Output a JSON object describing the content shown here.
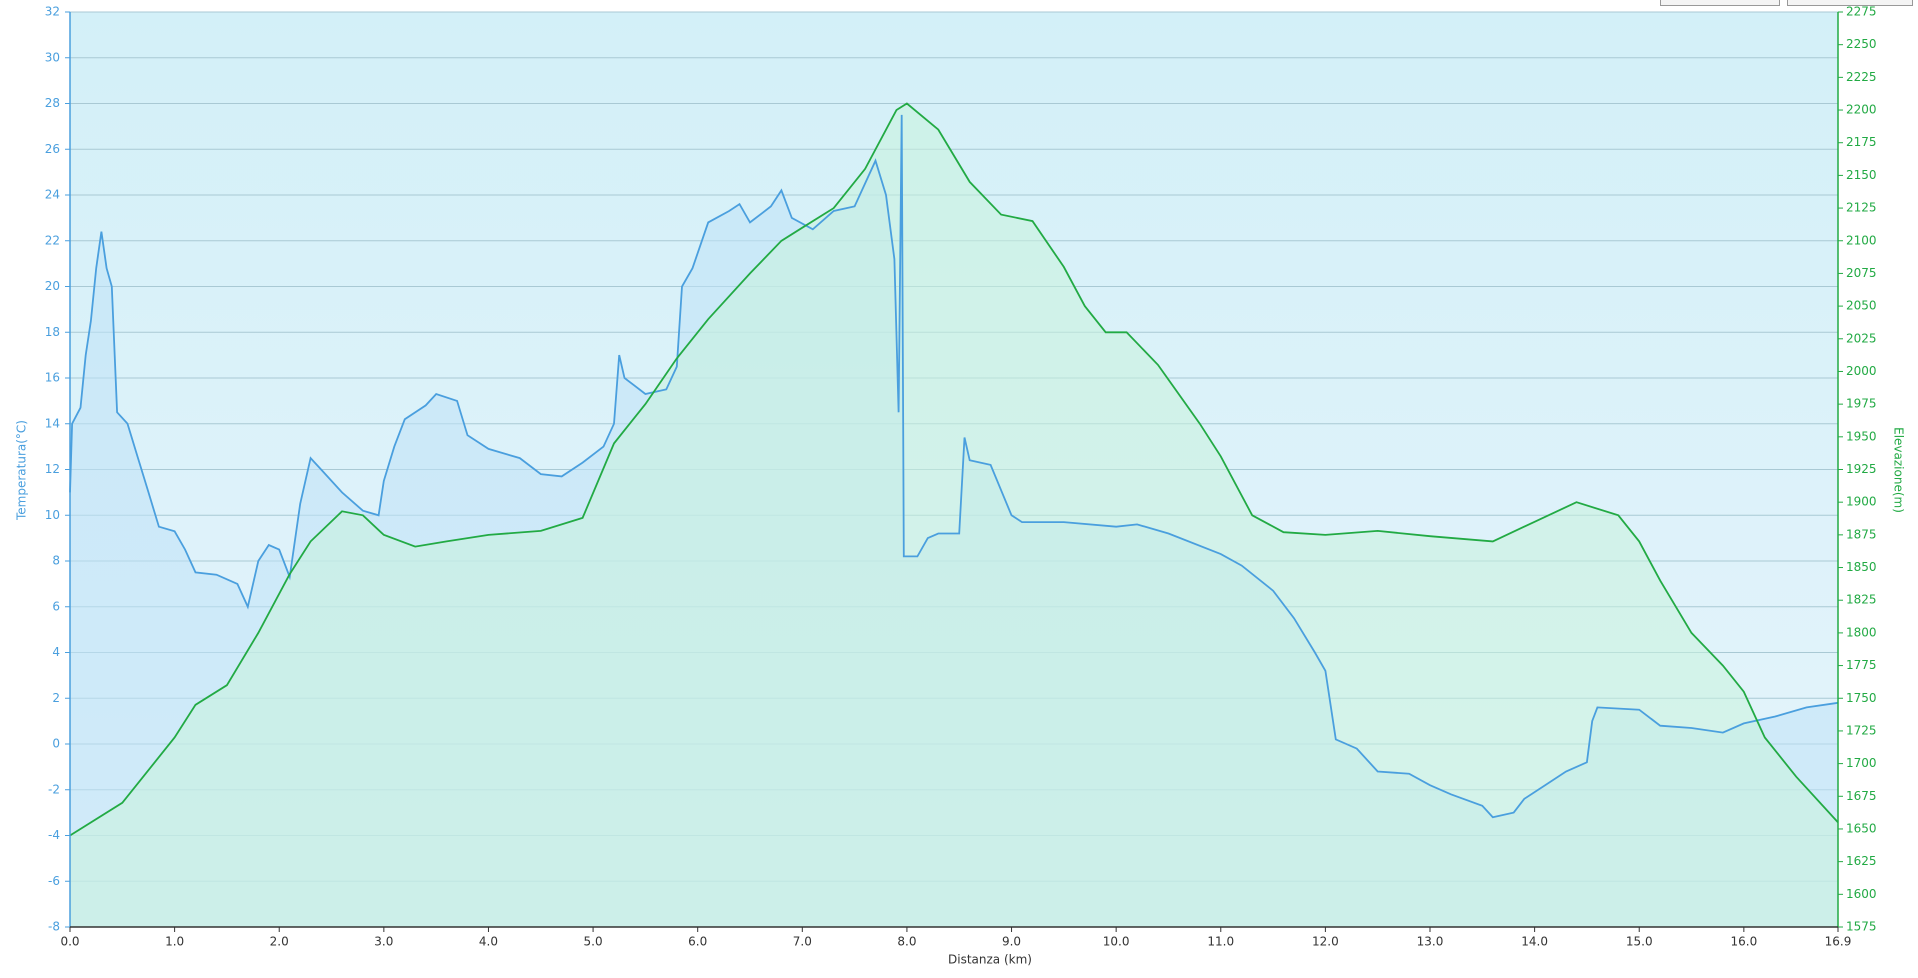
{
  "chart_data": {
    "type": "line",
    "xlabel": "Distanza  (km)",
    "ylabel": "Temperatura(°C)",
    "y2label": "Elevazione(m)",
    "xlim": [
      0,
      16.9
    ],
    "ylim": [
      -8,
      32
    ],
    "y2lim": [
      1575,
      2275
    ],
    "xticks": [
      {
        "value": 0,
        "label": "0.0"
      },
      {
        "value": 1,
        "label": "1.0"
      },
      {
        "value": 2,
        "label": "2.0"
      },
      {
        "value": 3,
        "label": "3.0"
      },
      {
        "value": 4,
        "label": "4.0"
      },
      {
        "value": 5,
        "label": "5.0"
      },
      {
        "value": 6,
        "label": "6.0"
      },
      {
        "value": 7,
        "label": "7.0"
      },
      {
        "value": 8,
        "label": "8.0"
      },
      {
        "value": 9,
        "label": "9.0"
      },
      {
        "value": 10,
        "label": "10.0"
      },
      {
        "value": 11,
        "label": "11.0"
      },
      {
        "value": 12,
        "label": "12.0"
      },
      {
        "value": 13,
        "label": "13.0"
      },
      {
        "value": 14,
        "label": "14.0"
      },
      {
        "value": 15,
        "label": "15.0"
      },
      {
        "value": 16,
        "label": "16.0"
      },
      16.9
    ],
    "yticks": [
      -8,
      -6,
      -4,
      -2,
      0,
      2,
      4,
      6,
      8,
      10,
      12,
      14,
      16,
      18,
      20,
      22,
      24,
      26,
      28,
      30,
      32
    ],
    "y2ticks": [
      1575,
      1600,
      1625,
      1650,
      1675,
      1700,
      1725,
      1750,
      1775,
      1800,
      1825,
      1850,
      1875,
      1900,
      1925,
      1950,
      1975,
      2000,
      2025,
      2050,
      2075,
      2100,
      2125,
      2150,
      2175,
      2200,
      2225,
      2250,
      2275
    ],
    "grid": true,
    "series": [
      {
        "color": "#4a9fde",
        "fill": "#bfe2f7",
        "x": [
          0,
          0.02,
          0.1,
          0.15,
          0.2,
          0.25,
          0.3,
          0.35,
          0.4,
          0.45,
          0.55,
          0.65,
          0.75,
          0.85,
          1.0,
          1.1,
          1.2,
          1.4,
          1.6,
          1.7,
          1.8,
          1.9,
          2.0,
          2.1,
          2.2,
          2.3,
          2.4,
          2.6,
          2.8,
          2.95,
          3.0,
          3.1,
          3.2,
          3.4,
          3.5,
          3.7,
          3.8,
          4.0,
          4.3,
          4.5,
          4.7,
          4.9,
          5.1,
          5.2,
          5.25,
          5.3,
          5.5,
          5.7,
          5.8,
          5.85,
          5.95,
          6.1,
          6.3,
          6.4,
          6.5,
          6.7,
          6.8,
          6.9,
          7.1,
          7.3,
          7.5,
          7.7,
          7.8,
          7.88,
          7.92,
          7.95,
          7.97,
          8.1,
          8.2,
          8.3,
          8.5,
          8.55,
          8.6,
          8.8,
          9.0,
          9.1,
          9.5,
          10.0,
          10.2,
          10.5,
          11.0,
          11.2,
          11.5,
          11.7,
          11.9,
          12.0,
          12.1,
          12.3,
          12.5,
          12.8,
          13.0,
          13.2,
          13.5,
          13.6,
          13.8,
          13.9,
          14.1,
          14.3,
          14.5,
          14.55,
          14.6,
          15.0,
          15.2,
          15.5,
          15.8,
          16.0,
          16.3,
          16.6,
          16.9
        ],
        "values": [
          11,
          14,
          14.7,
          17,
          18.5,
          20.8,
          22.4,
          20.8,
          20,
          14.5,
          14,
          12.5,
          11,
          9.5,
          9.3,
          8.5,
          7.5,
          7.4,
          7,
          6,
          8,
          8.7,
          8.5,
          7.3,
          10.5,
          12.5,
          12,
          11,
          10.2,
          10,
          11.5,
          13,
          14.2,
          14.8,
          15.3,
          15,
          13.5,
          12.9,
          12.5,
          11.8,
          11.7,
          12.3,
          13,
          14,
          17,
          16,
          15.3,
          15.5,
          16.5,
          20,
          20.8,
          22.8,
          23.3,
          23.6,
          22.8,
          23.5,
          24.2,
          23,
          22.5,
          23.3,
          23.5,
          25.5,
          24,
          21.2,
          14.5,
          27.5,
          8.2,
          8.2,
          9,
          9.2,
          9.2,
          13.4,
          12.4,
          12.2,
          10,
          9.7,
          9.7,
          9.5,
          9.6,
          9.2,
          8.3,
          7.8,
          6.7,
          5.5,
          4,
          3.2,
          0.2,
          -0.2,
          -1.2,
          -1.3,
          -1.8,
          -2.2,
          -2.7,
          -3.2,
          -3,
          -2.4,
          -1.8,
          -1.2,
          -0.8,
          1,
          1.6,
          1.5,
          0.8,
          0.7,
          0.5,
          0.9,
          1.2,
          1.6,
          1.8
        ]
      },
      {
        "color": "#22aa44",
        "fill": "#c8f2dc",
        "axis": "y2",
        "x": [
          0,
          0.5,
          1.0,
          1.2,
          1.5,
          1.8,
          2.1,
          2.3,
          2.6,
          2.8,
          3.0,
          3.3,
          3.6,
          4.0,
          4.5,
          4.9,
          5.2,
          5.5,
          5.8,
          6.1,
          6.5,
          6.8,
          7.0,
          7.3,
          7.6,
          7.9,
          8.0,
          8.3,
          8.6,
          8.9,
          9.2,
          9.5,
          9.7,
          9.9,
          10.1,
          10.4,
          10.8,
          11.0,
          11.3,
          11.6,
          12.0,
          12.5,
          13.0,
          13.6,
          14.0,
          14.4,
          14.8,
          15.0,
          15.2,
          15.5,
          15.8,
          16.0,
          16.2,
          16.5,
          16.9
        ],
        "values": [
          1645,
          1670,
          1720,
          1745,
          1760,
          1800,
          1845,
          1870,
          1893,
          1890,
          1875,
          1866,
          1870,
          1875,
          1878,
          1888,
          1945,
          1975,
          2010,
          2040,
          2075,
          2100,
          2110,
          2125,
          2155,
          2200,
          2205,
          2185,
          2145,
          2120,
          2115,
          2080,
          2050,
          2030,
          2030,
          2005,
          1960,
          1935,
          1890,
          1877,
          1875,
          1878,
          1874,
          1870,
          1885,
          1900,
          1890,
          1870,
          1840,
          1800,
          1775,
          1755,
          1720,
          1690,
          1655
        ]
      }
    ]
  }
}
